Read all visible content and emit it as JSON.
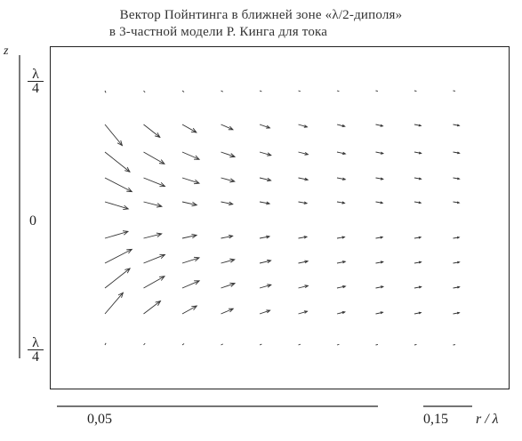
{
  "title": {
    "line1": "Вектор Пойнтинга в ближней зоне «λ/2-диполя»",
    "line2": "в 3-частной модели Р. Кинга для тока"
  },
  "axes": {
    "y_label": "z",
    "y_top_num": "λ",
    "y_top_den": "4",
    "y_zero": "0",
    "y_bottom_num": "λ",
    "y_bottom_den": "4",
    "x_tick_left": "0,05",
    "x_tick_right": "0,15",
    "x_label": "r / λ"
  },
  "colors": {
    "ink": "#222222",
    "background": "#ffffff"
  }
}
